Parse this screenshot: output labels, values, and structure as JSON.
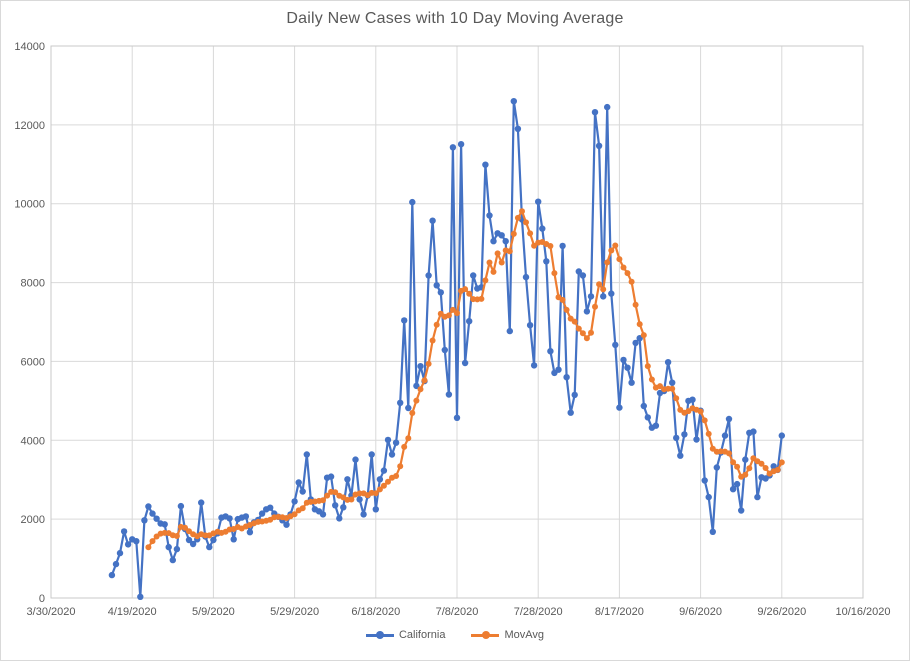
{
  "chart_data": {
    "type": "line",
    "title": "Daily New Cases with 10 Day Moving Average",
    "xlabel": "",
    "ylabel": "",
    "grid": true,
    "legend_position": "bottom",
    "x_axis": {
      "range": [
        "3/30/2020",
        "10/16/2020"
      ],
      "tick_labels": [
        "3/30/2020",
        "4/19/2020",
        "5/9/2020",
        "5/29/2020",
        "6/18/2020",
        "7/8/2020",
        "7/28/2020",
        "8/17/2020",
        "9/6/2020",
        "9/26/2020",
        "10/16/2020"
      ]
    },
    "y_axis": {
      "range": [
        0,
        14000
      ],
      "ticks": [
        0,
        2000,
        4000,
        6000,
        8000,
        10000,
        12000,
        14000
      ]
    },
    "colors": {
      "california": "#4472C4",
      "movavg": "#ED7D31",
      "gridline": "#D9D9D9",
      "axis_text": "#595959",
      "title_text": "#595959"
    },
    "series": [
      {
        "name": "California",
        "color": "#4472C4",
        "marker": "circle",
        "start_date": "4/14/2020",
        "end_date": "9/26/2020",
        "frequency": "daily",
        "values": [
          580,
          860,
          1140,
          1690,
          1360,
          1490,
          1440,
          30,
          1970,
          2320,
          2140,
          2010,
          1890,
          1870,
          1290,
          960,
          1240,
          2330,
          1750,
          1470,
          1370,
          1490,
          2420,
          1560,
          1290,
          1470,
          1640,
          2040,
          2070,
          2020,
          1490,
          2000,
          2040,
          2070,
          1670,
          1920,
          1980,
          2140,
          2250,
          2290,
          2140,
          2060,
          1970,
          1860,
          2120,
          2450,
          2930,
          2700,
          3640,
          2500,
          2250,
          2200,
          2120,
          3050,
          3080,
          2350,
          2020,
          2300,
          3010,
          2600,
          3510,
          2500,
          2120,
          2600,
          3640,
          2250,
          3010,
          3230,
          4010,
          3640,
          3940,
          4950,
          7040,
          4820,
          10040,
          5380,
          5880,
          5500,
          8180,
          9570,
          7930,
          7750,
          6290,
          5160,
          11430,
          4570,
          11510,
          5960,
          7020,
          8180,
          7850,
          7880,
          10990,
          9700,
          9050,
          9250,
          9200,
          9050,
          6770,
          12600,
          11900,
          9600,
          8140,
          6920,
          5900,
          10050,
          9370,
          8540,
          6260,
          5710,
          5790,
          8930,
          5600,
          4700,
          5150,
          8280,
          8180,
          7270,
          7650,
          12320,
          11470,
          7650,
          12450,
          7720,
          6420,
          4830,
          6040,
          5840,
          5460,
          6470,
          6590,
          4870,
          4580,
          4320,
          4370,
          5200,
          5250,
          5980,
          5460,
          4060,
          3610,
          4150,
          5000,
          5030,
          4020,
          4750,
          2980,
          2560,
          1680,
          3310,
          3690,
          4120,
          4540,
          2760,
          2890,
          2220,
          3510,
          4190,
          4220,
          2560,
          3060,
          3030,
          3110,
          3340,
          3250,
          4120
        ]
      },
      {
        "name": "MovAvg",
        "color": "#ED7D31",
        "marker": "circle",
        "derived_from": "California",
        "moving_average_window": 10,
        "note": "trailing 10-day moving average of the California series; first point plotted on the 10th day of data"
      }
    ]
  }
}
